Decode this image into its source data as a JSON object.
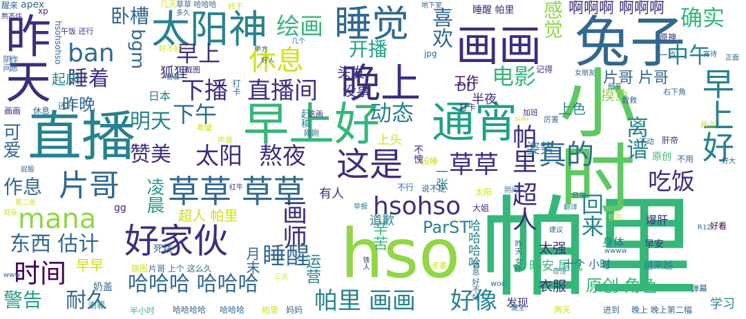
{
  "title": "",
  "palette": {
    "dark_purple": "#440154",
    "indigo": "#3b2f7e",
    "blue": "#31688e",
    "teal": "#26828e",
    "green": "#35b779",
    "lime": "#90d743",
    "yellow": "#d0e11c"
  },
  "words": [
    {
      "text": "帕里"
    },
    {
      "text": "小时"
    },
    {
      "text": "hso"
    },
    {
      "text": "直播"
    },
    {
      "text": "早上好"
    },
    {
      "text": "兔子"
    },
    {
      "text": "昨天"
    },
    {
      "text": "太阳神"
    },
    {
      "text": "睡觉"
    },
    {
      "text": "画画"
    },
    {
      "text": "晚上"
    },
    {
      "text": "通宵"
    },
    {
      "text": "早上好"
    },
    {
      "text": "好家伙"
    },
    {
      "text": "草草 草草"
    },
    {
      "text": "这是"
    },
    {
      "text": "hsohso"
    },
    {
      "text": "mana"
    },
    {
      "text": "片哥"
    },
    {
      "text": "休息"
    },
    {
      "text": "ban"
    },
    {
      "text": "直播间"
    },
    {
      "text": "下播"
    },
    {
      "text": "真的"
    },
    {
      "text": "草草"
    },
    {
      "text": "熬夜"
    },
    {
      "text": "太阳"
    },
    {
      "text": "赞美"
    },
    {
      "text": "画师"
    },
    {
      "text": "时间"
    },
    {
      "text": "哈哈哈 哈哈哈"
    },
    {
      "text": "帕里 画画"
    },
    {
      "text": "睡醒"
    },
    {
      "text": "东西 估计"
    },
    {
      "text": "作息"
    },
    {
      "text": "睡着"
    },
    {
      "text": "卧槽"
    },
    {
      "text": "绘画"
    },
    {
      "text": "开播"
    },
    {
      "text": "电影"
    },
    {
      "text": "早上"
    },
    {
      "text": "下午"
    },
    {
      "text": "明天"
    },
    {
      "text": "动态"
    },
    {
      "text": "确实"
    },
    {
      "text": "中午"
    },
    {
      "text": "吃饭"
    },
    {
      "text": "离谱"
    },
    {
      "text": "回来"
    },
    {
      "text": "帕里 超人"
    },
    {
      "text": "啊啊啊 啊啊啊"
    },
    {
      "text": "喜欢"
    },
    {
      "text": "感觉"
    },
    {
      "text": "ParST"
    },
    {
      "text": "耐久"
    },
    {
      "text": "警告"
    },
    {
      "text": "好像"
    },
    {
      "text": "原创 角色"
    },
    {
      "text": "片哥 片哥"
    },
    {
      "text": "可爱"
    },
    {
      "text": "凌晨"
    },
    {
      "text": "bgm"
    },
    {
      "text": "狐狸"
    },
    {
      "text": "昨晚"
    },
    {
      "text": "早早"
    },
    {
      "text": "辛苦"
    },
    {
      "text": "运营"
    },
    {
      "text": "月末"
    },
    {
      "text": "超人 帕里"
    },
    {
      "text": "晚安 尾巴"
    },
    {
      "text": "衣服"
    },
    {
      "text": "太强"
    },
    {
      "text": "姿势"
    },
    {
      "text": "上色"
    },
    {
      "text": "摸鱼"
    },
    {
      "text": "起床"
    },
    {
      "text": "头发"
    },
    {
      "text": "没事"
    },
    {
      "text": "工作"
    },
    {
      "text": "DD"
    },
    {
      "text": "半夜"
    },
    {
      "text": "上头"
    },
    {
      "text": "一张"
    },
    {
      "text": "有人"
    },
    {
      "text": "道歉"
    },
    {
      "text": "哈哈哈哈"
    },
    {
      "text": "日本"
    },
    {
      "text": "十个 小时"
    },
    {
      "text": "越来越"
    },
    {
      "text": "爆肝"
    },
    {
      "text": "早安"
    },
    {
      "text": "身体"
    },
    {
      "text": "学习"
    },
    {
      "text": "发现"
    },
    {
      "text": "apex"
    },
    {
      "text": "醒来"
    },
    {
      "text": "熬不住"
    },
    {
      "text": "作息"
    },
    {
      "text": "阴间"
    },
    {
      "text": "hsohsohso"
    },
    {
      "text": "画画"
    },
    {
      "text": "休息"
    },
    {
      "text": "还好"
    },
    {
      "text": "打卡"
    },
    {
      "text": "不愧"
    },
    {
      "text": "没睡"
    },
    {
      "text": "原创"
    },
    {
      "text": "肝帝"
    },
    {
      "text": "不用"
    },
    {
      "text": "奶盖"
    },
    {
      "text": "谢罪"
    },
    {
      "text": "半小时"
    },
    {
      "text": "哈哈哈哈"
    },
    {
      "text": "哈哈哈"
    },
    {
      "text": "帕里"
    },
    {
      "text": "妈妈"
    },
    {
      "text": "两天"
    },
    {
      "text": "进到"
    },
    {
      "text": "晚上 晚上第二幅"
    },
    {
      "text": "片哥 上个 这么久"
    },
    {
      "text": "换图"
    },
    {
      "text": "死线"
    },
    {
      "text": "gg"
    },
    {
      "text": "好看"
    },
    {
      "text": "弹幕"
    },
    {
      "text": "R12"
    },
    {
      "text": "几天"
    },
    {
      "text": "草草 哈哈哈"
    },
    {
      "text": "终于"
    },
    {
      "text": "地下室"
    },
    {
      "text": "睡醒 帕里"
    },
    {
      "text": "原神"
    },
    {
      "text": "记得"
    },
    {
      "text": "一点"
    },
    {
      "text": "jpg"
    },
    {
      "text": "几个"
    },
    {
      "text": "午饭 还行"
    },
    {
      "text": "xp"
    },
    {
      "text": "多久"
    },
    {
      "text": "好不好"
    },
    {
      "text": "甲方"
    },
    {
      "text": "好人"
    },
    {
      "text": "截图"
    },
    {
      "text": "看着"
    },
    {
      "text": "打卡"
    },
    {
      "text": "赶稿"
    },
    {
      "text": "这画"
    },
    {
      "text": "希望"
    },
    {
      "text": "声音"
    },
    {
      "text": "刚刚"
    },
    {
      "text": "屁股"
    },
    {
      "text": "红牛"
    },
    {
      "text": "第二张"
    },
    {
      "text": "耳朵"
    },
    {
      "text": "不行"
    },
    {
      "text": "说不定"
    },
    {
      "text": "太阳"
    },
    {
      "text": "大姐"
    },
    {
      "text": "举报"
    },
    {
      "text": "阴间"
    },
    {
      "text": "日常"
    },
    {
      "text": "翻译"
    },
    {
      "text": "祖宗"
    },
    {
      "text": "建议"
    },
    {
      "text": "奇怪"
    },
    {
      "text": "老婆"
    },
    {
      "text": "woc"
    },
    {
      "text": "三点"
    },
    {
      "text": "休息 好不好"
    },
    {
      "text": "昨天 女仆"
    },
    {
      "text": "铁人"
    },
    {
      "text": "加班"
    },
    {
      "text": "厉害"
    },
    {
      "text": "救救"
    },
    {
      "text": "右下角"
    },
    {
      "text": "细节"
    },
    {
      "text": "女朋友"
    },
    {
      "text": "宵待"
    },
    {
      "text": "正面"
    },
    {
      "text": "两点"
    },
    {
      "text": "好大"
    },
    {
      "text": "不动"
    },
    {
      "text": "suki"
    },
    {
      "text": "健全"
    },
    {
      "text": "www"
    },
    {
      "text": "wwww"
    }
  ]
}
